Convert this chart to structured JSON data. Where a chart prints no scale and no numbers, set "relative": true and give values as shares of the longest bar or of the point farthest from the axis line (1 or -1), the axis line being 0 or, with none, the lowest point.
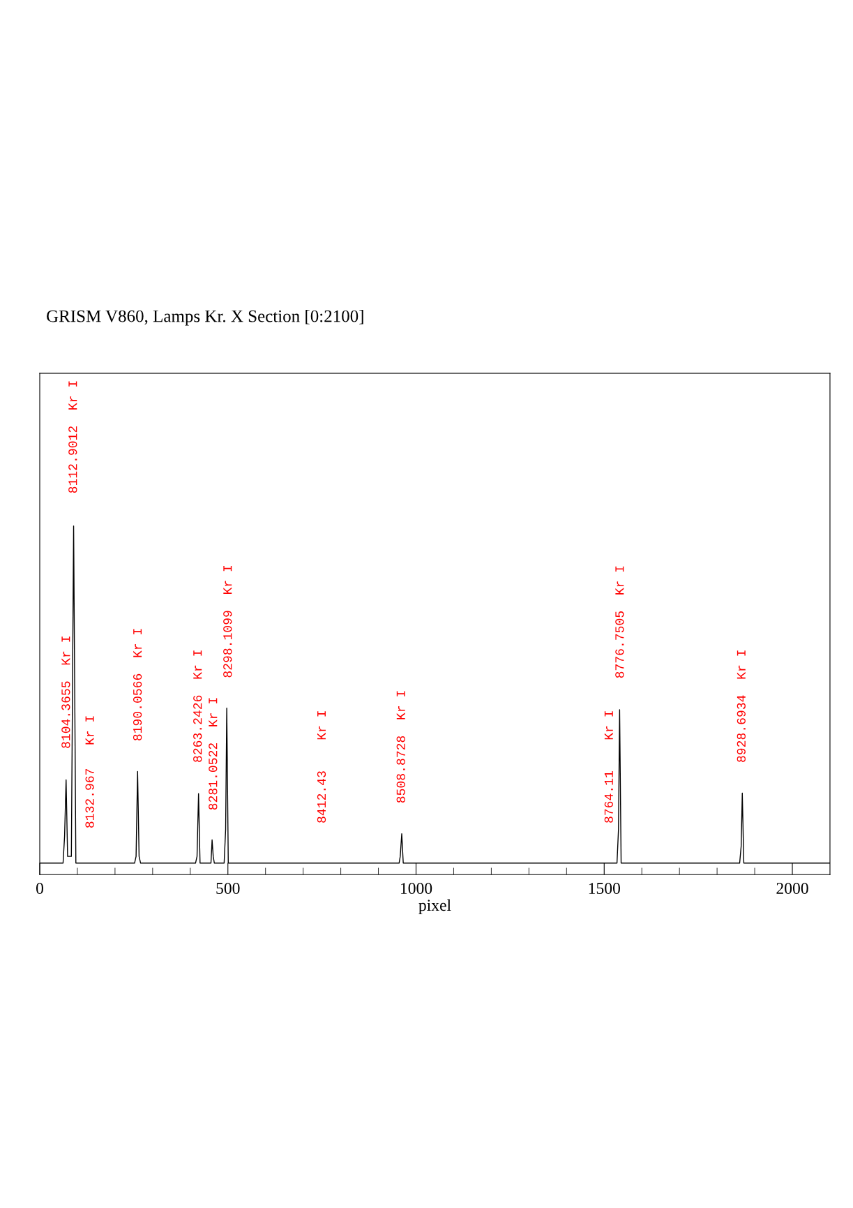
{
  "chart_data": {
    "type": "line",
    "title": "GRISM V860, Lamps Kr. X Section [0:2100]",
    "xlabel": "pixel",
    "relative": true,
    "x": [
      0,
      62,
      66,
      70,
      74,
      84,
      90,
      96,
      252,
      256,
      260,
      264,
      268,
      414,
      418,
      422,
      426,
      455,
      458,
      461,
      464,
      490,
      494,
      497,
      501,
      955,
      958,
      962,
      966,
      1534,
      1538,
      1541,
      1545,
      1860,
      1864,
      1867,
      1871,
      2100
    ],
    "series": [
      {
        "color": "#000000",
        "values": [
          0,
          0,
          0.08,
          0.247,
          0.02,
          0.02,
          1.0,
          0,
          0,
          0.02,
          0.272,
          0.02,
          0,
          0,
          0.02,
          0.206,
          0,
          0,
          0.069,
          0.02,
          0,
          0,
          0.1,
          0.46,
          0,
          0,
          0.02,
          0.087,
          0,
          0,
          0.1,
          0.455,
          0,
          0,
          0.05,
          0.208,
          0,
          0
        ]
      }
    ],
    "annotations": [
      "8104.3655  Kr I",
      "8112.9012  Kr I",
      "8132.967   Kr I",
      "8190.0566  Kr I",
      "8263.2426  Kr I",
      "8281.0522  Kr I",
      "8298.1099  Kr I",
      "8412.43    Kr I",
      "8508.8728  Kr I",
      "8764.11    Kr I",
      "8776.7505  Kr I",
      "8928.6934  Kr I"
    ],
    "xlim": [
      0,
      2100
    ],
    "xticks": [
      0,
      {
        "value": 100,
        "label": null
      },
      {
        "value": 200,
        "label": null
      },
      {
        "value": 300,
        "label": null
      },
      {
        "value": 400,
        "label": null
      },
      500,
      {
        "value": 600,
        "label": null
      },
      {
        "value": 700,
        "label": null
      },
      {
        "value": 800,
        "label": null
      },
      {
        "value": 900,
        "label": null
      },
      1000,
      {
        "value": 1100,
        "label": null
      },
      {
        "value": 1200,
        "label": null
      },
      {
        "value": 1300,
        "label": null
      },
      {
        "value": 1400,
        "label": null
      },
      1500,
      {
        "value": 1600,
        "label": null
      },
      {
        "value": 1700,
        "label": null
      },
      {
        "value": 1800,
        "label": null
      },
      {
        "value": 1900,
        "label": null
      },
      2000
    ],
    "tick_labels": "x",
    "grid": false
  }
}
